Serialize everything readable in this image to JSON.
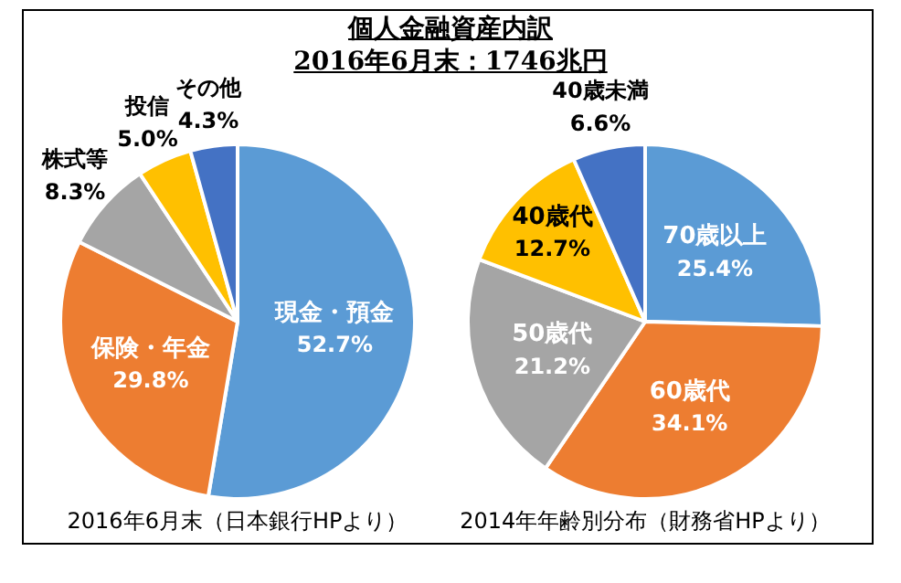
{
  "chart_data": [
    {
      "type": "pie",
      "title": "個人金融資産内訳",
      "subtitle": "2016年6月末：1746兆円",
      "categories": [
        "現金・預金",
        "保険・年金",
        "株式等",
        "投信",
        "その他"
      ],
      "values": [
        52.7,
        29.8,
        8.3,
        5.0,
        4.3
      ],
      "colors": [
        "#5b9bd5",
        "#ed7d31",
        "#a5a5a5",
        "#ffc000",
        "#4472c4"
      ],
      "value_labels": [
        "52.7%",
        "29.8%",
        "8.3%",
        "5.0%",
        "4.3%"
      ],
      "annotations": [
        "2016年6月末（日本銀行HPより）"
      ],
      "legend": false
    },
    {
      "type": "pie",
      "categories": [
        "70歳以上",
        "60歳代",
        "50歳代",
        "40歳代",
        "40歳未満"
      ],
      "values": [
        25.4,
        34.1,
        21.2,
        12.7,
        6.6
      ],
      "colors": [
        "#5b9bd5",
        "#ed7d31",
        "#a5a5a5",
        "#ffc000",
        "#4472c4"
      ],
      "value_labels": [
        "25.4%",
        "34.1%",
        "21.2%",
        "12.7%",
        "6.6%"
      ],
      "annotations": [
        "2014年年齢別分布（財務省HPより）"
      ],
      "legend": false
    }
  ]
}
